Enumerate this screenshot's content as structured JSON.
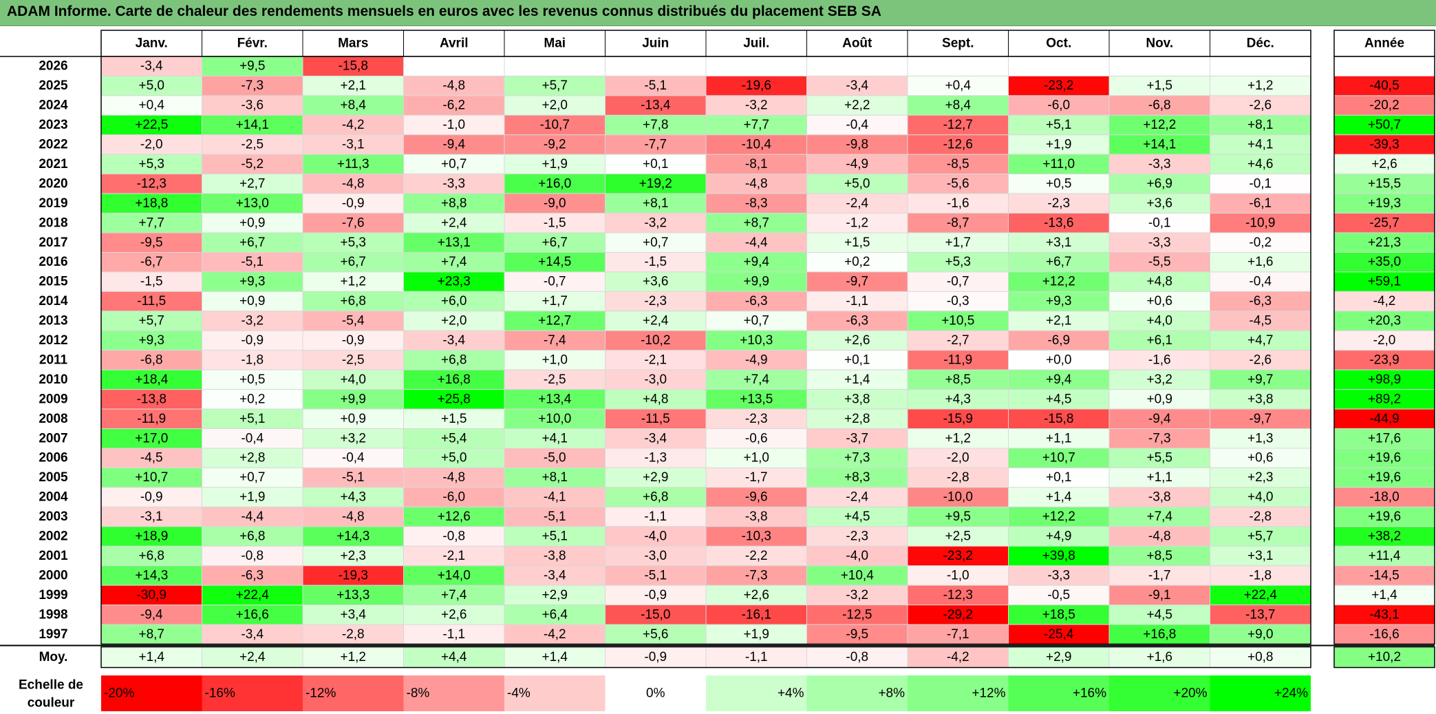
{
  "title": "ADAM Informe. Carte de chaleur des rendements mensuels en euros avec les revenus connus distribués du placement SEB SA",
  "chart_data": {
    "type": "heatmap",
    "months": [
      "Janv.",
      "Févr.",
      "Mars",
      "Avril",
      "Mai",
      "Juin",
      "Juil.",
      "Août",
      "Sept.",
      "Oct.",
      "Nov.",
      "Déc."
    ],
    "year_column_label": "Année",
    "years": [
      2026,
      2025,
      2024,
      2023,
      2022,
      2021,
      2020,
      2019,
      2018,
      2017,
      2016,
      2015,
      2014,
      2013,
      2012,
      2011,
      2010,
      2009,
      2008,
      2007,
      2006,
      2005,
      2004,
      2003,
      2002,
      2001,
      2000,
      1999,
      1998,
      1997
    ],
    "values": [
      [
        -3.4,
        9.5,
        -15.8,
        null,
        null,
        null,
        null,
        null,
        null,
        null,
        null,
        null
      ],
      [
        5.0,
        -7.3,
        2.1,
        -4.8,
        5.7,
        -5.1,
        -19.6,
        -3.4,
        0.4,
        -23.2,
        1.5,
        1.2
      ],
      [
        0.4,
        -3.6,
        8.4,
        -6.2,
        2.0,
        -13.4,
        -3.2,
        2.2,
        8.4,
        -6.0,
        -6.8,
        -2.6
      ],
      [
        22.5,
        14.1,
        -4.2,
        -1.0,
        -10.7,
        7.8,
        7.7,
        -0.4,
        -12.7,
        5.1,
        12.2,
        8.1
      ],
      [
        -2.0,
        -2.5,
        -3.1,
        -9.4,
        -9.2,
        -7.7,
        -10.4,
        -9.8,
        -12.6,
        1.9,
        14.1,
        4.1
      ],
      [
        5.3,
        -5.2,
        11.3,
        0.7,
        1.9,
        0.1,
        -8.1,
        -4.9,
        -8.5,
        11.0,
        -3.3,
        4.6
      ],
      [
        -12.3,
        2.7,
        -4.8,
        -3.3,
        16.0,
        19.2,
        -4.8,
        5.0,
        -5.6,
        0.5,
        6.9,
        -0.1
      ],
      [
        18.8,
        13.0,
        -0.9,
        8.8,
        -9.0,
        8.1,
        -8.3,
        -2.4,
        -1.6,
        -2.3,
        3.6,
        -6.1
      ],
      [
        7.7,
        0.9,
        -7.6,
        2.4,
        -1.5,
        -3.2,
        8.7,
        -1.2,
        -8.7,
        -13.6,
        -0.1,
        -10.9
      ],
      [
        -9.5,
        6.7,
        5.3,
        13.1,
        6.7,
        0.7,
        -4.4,
        1.5,
        1.7,
        3.1,
        -3.3,
        -0.2
      ],
      [
        -6.7,
        -5.1,
        6.7,
        7.4,
        14.5,
        -1.5,
        9.4,
        0.2,
        5.3,
        6.7,
        -5.5,
        1.6
      ],
      [
        -1.5,
        9.3,
        1.2,
        23.3,
        -0.7,
        3.6,
        9.9,
        -9.7,
        -0.7,
        12.2,
        4.8,
        -0.4
      ],
      [
        -11.5,
        0.9,
        6.8,
        6.0,
        1.7,
        -2.3,
        -6.3,
        -1.1,
        -0.3,
        9.3,
        0.6,
        -6.3
      ],
      [
        5.7,
        -3.2,
        -5.4,
        2.0,
        12.7,
        2.4,
        0.7,
        -6.3,
        10.5,
        2.1,
        4.0,
        -4.5
      ],
      [
        9.3,
        -0.9,
        -0.9,
        -3.4,
        -7.4,
        -10.2,
        10.3,
        2.6,
        -2.7,
        -6.9,
        6.1,
        4.7
      ],
      [
        -6.8,
        -1.8,
        -2.5,
        6.8,
        1.0,
        -2.1,
        -4.9,
        0.1,
        -11.9,
        0.0,
        -1.6,
        -2.6
      ],
      [
        18.4,
        0.5,
        4.0,
        16.8,
        -2.5,
        -3.0,
        7.4,
        1.4,
        8.5,
        9.4,
        3.2,
        9.7
      ],
      [
        -13.8,
        0.2,
        9.9,
        25.8,
        13.4,
        4.8,
        13.5,
        3.8,
        4.3,
        4.5,
        0.9,
        3.8
      ],
      [
        -11.9,
        5.1,
        0.9,
        1.5,
        10.0,
        -11.5,
        -2.3,
        2.8,
        -15.9,
        -15.8,
        -9.4,
        -9.7
      ],
      [
        17.0,
        -0.4,
        3.2,
        5.4,
        4.1,
        -3.4,
        -0.6,
        -3.7,
        1.2,
        1.1,
        -7.3,
        1.3
      ],
      [
        -4.5,
        2.8,
        -0.4,
        5.0,
        -5.0,
        -1.3,
        1.0,
        7.3,
        -2.0,
        10.7,
        5.5,
        0.6
      ],
      [
        10.7,
        0.7,
        -5.1,
        -4.8,
        8.1,
        2.9,
        -1.7,
        8.3,
        -2.8,
        0.1,
        1.1,
        2.3
      ],
      [
        -0.9,
        1.9,
        4.3,
        -6.0,
        -4.1,
        6.8,
        -9.6,
        -2.4,
        -10.0,
        1.4,
        -3.8,
        4.0
      ],
      [
        -3.1,
        -4.4,
        -4.8,
        12.6,
        -5.1,
        -1.1,
        -3.8,
        4.5,
        9.5,
        12.2,
        7.4,
        -2.8
      ],
      [
        18.9,
        6.8,
        14.3,
        -0.8,
        5.1,
        -4.0,
        -10.3,
        -2.3,
        2.5,
        4.9,
        -4.8,
        5.7
      ],
      [
        6.8,
        -0.8,
        2.3,
        -2.1,
        -3.8,
        -3.0,
        -2.2,
        -4.0,
        -23.2,
        39.8,
        8.5,
        3.1
      ],
      [
        14.3,
        -6.3,
        -19.3,
        14.0,
        -3.4,
        -5.1,
        -7.3,
        10.4,
        -1.0,
        -3.3,
        -1.7,
        -1.8
      ],
      [
        -30.9,
        22.4,
        13.3,
        7.4,
        2.9,
        -0.9,
        2.6,
        -3.2,
        -12.3,
        -0.5,
        -9.1,
        22.4
      ],
      [
        -9.4,
        16.6,
        3.4,
        2.6,
        6.4,
        -15.0,
        -16.1,
        -12.5,
        -29.2,
        18.5,
        4.5,
        -13.7
      ],
      [
        8.7,
        -3.4,
        -2.8,
        -1.1,
        -4.2,
        5.6,
        1.9,
        -9.5,
        -7.1,
        -25.4,
        16.8,
        9.0
      ]
    ],
    "annual": [
      null,
      -40.5,
      -20.2,
      50.7,
      -39.3,
      2.6,
      15.5,
      19.3,
      -25.7,
      21.3,
      35.0,
      59.1,
      -4.2,
      20.3,
      -2.0,
      -23.9,
      98.9,
      89.2,
      -44.9,
      17.6,
      19.6,
      19.6,
      -18.0,
      19.6,
      38.2,
      11.4,
      -14.5,
      1.4,
      -43.1,
      -16.6
    ],
    "average_row_label": "Moy.",
    "averages": [
      1.4,
      2.4,
      1.2,
      4.4,
      1.4,
      -0.9,
      -1.1,
      -0.8,
      -4.2,
      2.9,
      1.6,
      0.8
    ],
    "average_annual": 10.2,
    "color_scale": {
      "label": "Echelle de couleur",
      "stops": [
        -20,
        -16,
        -12,
        -8,
        -4,
        0,
        4,
        8,
        12,
        16,
        20,
        24
      ],
      "stop_labels": [
        "-20%",
        "-16%",
        "-12%",
        "-8%",
        "-4%",
        "0%",
        "+4%",
        "+8%",
        "+12%",
        "+16%",
        "+20%",
        "+24%"
      ],
      "colors": [
        "#ff0000",
        "#ff3333",
        "#ff6666",
        "#ff9999",
        "#ffcccc",
        "#ffffff",
        "#ccffcc",
        "#aaffaa",
        "#88ff88",
        "#55ff55",
        "#33ff33",
        "#00ff00"
      ]
    }
  }
}
